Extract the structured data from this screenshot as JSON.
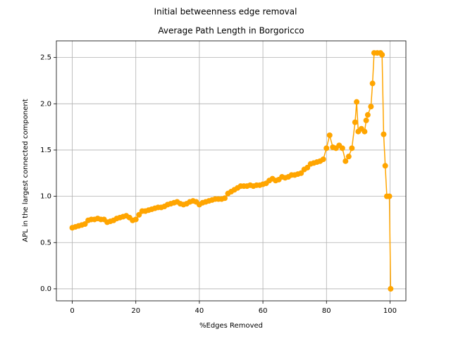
{
  "chart_data": {
    "type": "line",
    "suptitle": "Initial betweenness edge removal",
    "title": "Average Path Length in Borgoricco",
    "xlabel": "%Edges Removed",
    "ylabel": "APL in the largest connected component",
    "color": "#ffa500",
    "grid": true,
    "xlim": [
      -5,
      105
    ],
    "ylim": [
      -0.13,
      2.68
    ],
    "xticks": [
      0,
      20,
      40,
      60,
      80,
      100
    ],
    "yticks": [
      {
        "value": 0,
        "label": "0.0"
      },
      0.5,
      {
        "value": 1,
        "label": "1.0"
      },
      1.5,
      {
        "value": 2,
        "label": "2.0"
      },
      2.5
    ],
    "x": [
      0,
      1,
      2,
      3,
      4,
      5,
      6,
      7,
      8,
      9,
      10,
      11,
      12,
      13,
      14,
      15,
      16,
      17,
      18,
      19,
      20,
      21,
      22,
      23,
      24,
      25,
      26,
      27,
      28,
      29,
      30,
      31,
      32,
      33,
      34,
      35,
      36,
      37,
      38,
      39,
      40,
      41,
      42,
      43,
      44,
      45,
      46,
      47,
      48,
      49,
      50,
      51,
      52,
      53,
      54,
      55,
      56,
      57,
      58,
      59,
      60,
      61,
      62,
      63,
      64,
      65,
      66,
      67,
      68,
      69,
      70,
      71,
      72,
      73,
      74,
      75,
      76,
      77,
      78,
      79,
      80,
      81,
      82,
      83,
      84,
      85,
      86,
      87,
      88,
      89,
      89.5,
      90,
      91,
      92,
      92.5,
      93,
      94,
      94.5,
      95,
      96,
      97,
      97.5,
      98,
      98.5,
      99,
      99.8,
      100.2
    ],
    "values": [
      0.66,
      0.67,
      0.68,
      0.69,
      0.7,
      0.74,
      0.75,
      0.75,
      0.76,
      0.75,
      0.75,
      0.72,
      0.73,
      0.74,
      0.76,
      0.77,
      0.78,
      0.79,
      0.77,
      0.74,
      0.75,
      0.8,
      0.84,
      0.84,
      0.85,
      0.86,
      0.87,
      0.88,
      0.88,
      0.89,
      0.91,
      0.92,
      0.93,
      0.94,
      0.92,
      0.91,
      0.92,
      0.94,
      0.95,
      0.94,
      0.91,
      0.93,
      0.94,
      0.95,
      0.96,
      0.97,
      0.97,
      0.97,
      0.98,
      1.03,
      1.05,
      1.07,
      1.09,
      1.11,
      1.11,
      1.11,
      1.12,
      1.11,
      1.12,
      1.12,
      1.13,
      1.14,
      1.17,
      1.19,
      1.17,
      1.18,
      1.21,
      1.2,
      1.21,
      1.23,
      1.23,
      1.24,
      1.25,
      1.29,
      1.31,
      1.35,
      1.36,
      1.37,
      1.38,
      1.4,
      1.52,
      1.66,
      1.53,
      1.52,
      1.55,
      1.52,
      1.38,
      1.43,
      1.52,
      1.8,
      2.02,
      1.7,
      1.73,
      1.7,
      1.82,
      1.88,
      1.97,
      2.22,
      2.55,
      2.55,
      2.55,
      2.53,
      1.67,
      1.33,
      1.0,
      1.0,
      0.0
    ]
  }
}
